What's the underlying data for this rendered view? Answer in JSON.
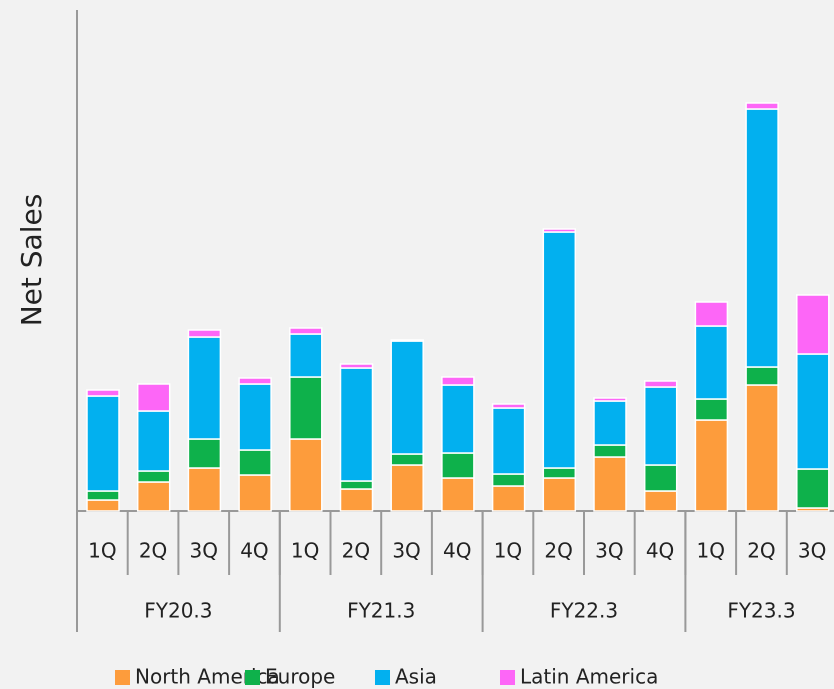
{
  "chart_data": {
    "type": "bar",
    "stacked": true,
    "y_label": "Net Sales",
    "categories": [
      "1Q",
      "2Q",
      "3Q",
      "4Q",
      "1Q",
      "2Q",
      "3Q",
      "4Q",
      "1Q",
      "2Q",
      "3Q",
      "4Q",
      "1Q",
      "2Q",
      "3Q"
    ],
    "groups": [
      {
        "name": "FY20.3",
        "size": 4
      },
      {
        "name": "FY21.3",
        "size": 4
      },
      {
        "name": "FY22.3",
        "size": 4
      },
      {
        "name": "FY23.3",
        "size": 3
      }
    ],
    "ylim": [
      0,
      501
    ],
    "series": [
      {
        "name": "North America",
        "color": "#fd9c3c",
        "values": [
          11,
          29,
          43,
          36,
          72,
          22,
          46,
          33,
          25,
          33,
          54,
          20,
          91,
          126,
          3
        ]
      },
      {
        "name": "Europe",
        "color": "#0eb14b",
        "values": [
          9,
          11,
          29,
          25,
          62,
          8,
          11,
          25,
          12,
          10,
          12,
          26,
          21,
          18,
          39
        ]
      },
      {
        "name": "Asia",
        "color": "#02b0ef",
        "values": [
          95,
          60,
          102,
          66,
          43,
          113,
          113,
          68,
          66,
          236,
          44,
          78,
          73,
          258,
          115
        ]
      },
      {
        "name": "Latin America",
        "color": "#fd66f7",
        "values": [
          6,
          27,
          7,
          6,
          6,
          4,
          1,
          8,
          4,
          3,
          3,
          6,
          24,
          6,
          59
        ]
      }
    ]
  }
}
